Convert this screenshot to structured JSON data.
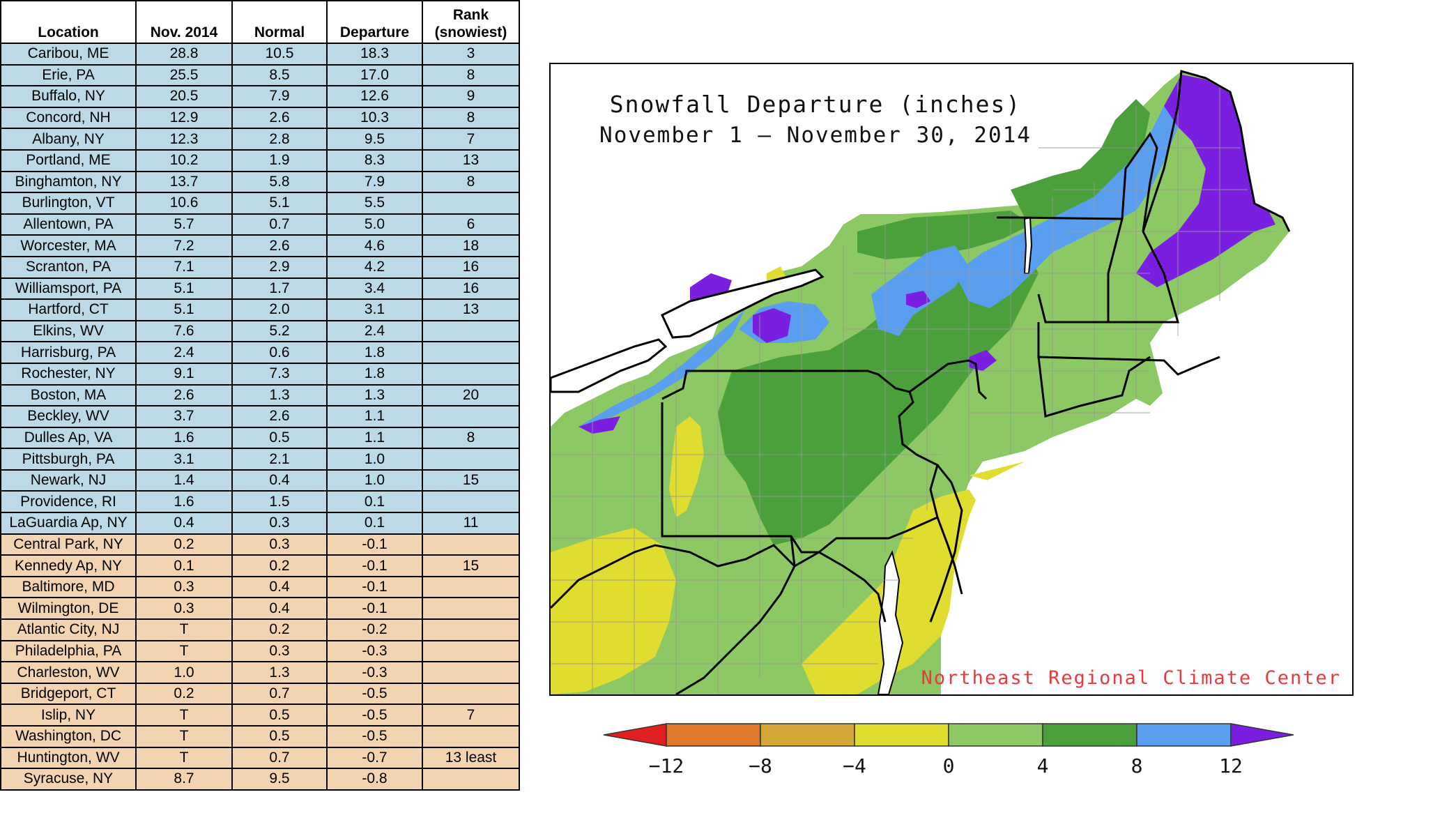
{
  "table": {
    "headers": [
      "Location",
      "Nov. 2014",
      "Normal",
      "Departure",
      "Rank\n(snowiest)"
    ],
    "rows": [
      [
        "Caribou, ME",
        "28.8",
        "10.5",
        "18.3",
        "3"
      ],
      [
        "Erie, PA",
        "25.5",
        "8.5",
        "17.0",
        "8"
      ],
      [
        "Buffalo, NY",
        "20.5",
        "7.9",
        "12.6",
        "9"
      ],
      [
        "Concord, NH",
        "12.9",
        "2.6",
        "10.3",
        "8"
      ],
      [
        "Albany, NY",
        "12.3",
        "2.8",
        "9.5",
        "7"
      ],
      [
        "Portland, ME",
        "10.2",
        "1.9",
        "8.3",
        "13"
      ],
      [
        "Binghamton, NY",
        "13.7",
        "5.8",
        "7.9",
        "8"
      ],
      [
        "Burlington, VT",
        "10.6",
        "5.1",
        "5.5",
        ""
      ],
      [
        "Allentown, PA",
        "5.7",
        "0.7",
        "5.0",
        "6"
      ],
      [
        "Worcester, MA",
        "7.2",
        "2.6",
        "4.6",
        "18"
      ],
      [
        "Scranton, PA",
        "7.1",
        "2.9",
        "4.2",
        "16"
      ],
      [
        "Williamsport, PA",
        "5.1",
        "1.7",
        "3.4",
        "16"
      ],
      [
        "Hartford, CT",
        "5.1",
        "2.0",
        "3.1",
        "13"
      ],
      [
        "Elkins, WV",
        "7.6",
        "5.2",
        "2.4",
        ""
      ],
      [
        "Harrisburg, PA",
        "2.4",
        "0.6",
        "1.8",
        ""
      ],
      [
        "Rochester, NY",
        "9.1",
        "7.3",
        "1.8",
        ""
      ],
      [
        "Boston, MA",
        "2.6",
        "1.3",
        "1.3",
        "20"
      ],
      [
        "Beckley, WV",
        "3.7",
        "2.6",
        "1.1",
        ""
      ],
      [
        "Dulles Ap, VA",
        "1.6",
        "0.5",
        "1.1",
        "8"
      ],
      [
        "Pittsburgh, PA",
        "3.1",
        "2.1",
        "1.0",
        ""
      ],
      [
        "Newark, NJ",
        "1.4",
        "0.4",
        "1.0",
        "15"
      ],
      [
        "Providence, RI",
        "1.6",
        "1.5",
        "0.1",
        ""
      ],
      [
        "LaGuardia Ap, NY",
        "0.4",
        "0.3",
        "0.1",
        "11"
      ],
      [
        "Central Park, NY",
        "0.2",
        "0.3",
        "-0.1",
        ""
      ],
      [
        "Kennedy Ap, NY",
        "0.1",
        "0.2",
        "-0.1",
        "15"
      ],
      [
        "Baltimore, MD",
        "0.3",
        "0.4",
        "-0.1",
        ""
      ],
      [
        "Wilmington, DE",
        "0.3",
        "0.4",
        "-0.1",
        ""
      ],
      [
        "Atlantic City, NJ",
        "T",
        "0.2",
        "-0.2",
        ""
      ],
      [
        "Philadelphia, PA",
        "T",
        "0.3",
        "-0.3",
        ""
      ],
      [
        "Charleston, WV",
        "1.0",
        "1.3",
        "-0.3",
        ""
      ],
      [
        "Bridgeport, CT",
        "0.2",
        "0.7",
        "-0.5",
        ""
      ],
      [
        "Islip, NY",
        "T",
        "0.5",
        "-0.5",
        "7"
      ],
      [
        "Washington, DC",
        "T",
        "0.5",
        "-0.5",
        ""
      ],
      [
        "Huntington, WV",
        "T",
        "0.7",
        "-0.7",
        "13 least"
      ],
      [
        "Syracuse, NY",
        "8.7",
        "9.5",
        "-0.8",
        ""
      ]
    ],
    "colors": {
      "positive_row": "#bcd9e8",
      "negative_row": "#f4d3b1"
    }
  },
  "map": {
    "title": "Snowfall Departure (inches)",
    "subtitle": "November 1 — November 30, 2014",
    "credit": "Northeast Regional Climate Center",
    "colors": {
      "water": "#ffffff",
      "yellow": "#e0dc30",
      "light_green": "#8cc864",
      "dark_green": "#4ca03c",
      "blue": "#5a9ef0",
      "purple": "#7a1ee0",
      "county_lines": "#9a9a9a",
      "state_lines": "#000000",
      "credit": "#e8393c"
    }
  },
  "legend": {
    "labels": [
      "−12",
      "−8",
      "−4",
      "0",
      "4",
      "8",
      "12"
    ],
    "colors": [
      "#e02020",
      "#e0782c",
      "#d4a838",
      "#e0dc30",
      "#8cc864",
      "#4ca03c",
      "#5a9ef0",
      "#7a1ee0"
    ]
  }
}
